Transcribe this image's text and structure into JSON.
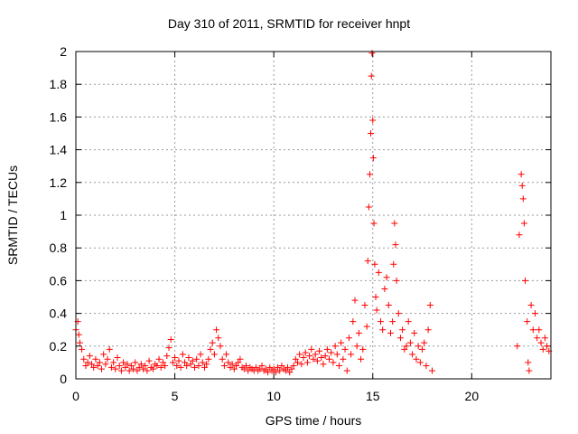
{
  "chart_data": {
    "type": "scatter",
    "title": "Day 310 of 2011, SRMTID for receiver hnpt",
    "xlabel": "GPS time / hours",
    "ylabel": "SRMTID / TECUs",
    "xlim": [
      0,
      24
    ],
    "ylim": [
      0,
      2
    ],
    "xticks": [
      0,
      5,
      10,
      15,
      20
    ],
    "yticks": [
      0,
      0.2,
      0.4,
      0.6,
      0.8,
      1,
      1.2,
      1.4,
      1.6,
      1.8,
      2
    ],
    "grid": true,
    "marker": "+",
    "series_color": "#ff0000",
    "series": [
      {
        "points": [
          [
            0.0,
            0.3
          ],
          [
            0.1,
            0.35
          ],
          [
            0.15,
            0.27
          ],
          [
            0.2,
            0.22
          ],
          [
            0.3,
            0.18
          ],
          [
            0.4,
            0.12
          ],
          [
            0.5,
            0.08
          ],
          [
            0.6,
            0.1
          ],
          [
            0.7,
            0.14
          ],
          [
            0.8,
            0.09
          ],
          [
            0.9,
            0.07
          ],
          [
            1.0,
            0.12
          ],
          [
            1.1,
            0.08
          ],
          [
            1.2,
            0.1
          ],
          [
            1.3,
            0.06
          ],
          [
            1.4,
            0.15
          ],
          [
            1.5,
            0.09
          ],
          [
            1.6,
            0.12
          ],
          [
            1.7,
            0.18
          ],
          [
            1.8,
            0.07
          ],
          [
            1.9,
            0.1
          ],
          [
            2.0,
            0.06
          ],
          [
            2.1,
            0.13
          ],
          [
            2.2,
            0.08
          ],
          [
            2.3,
            0.05
          ],
          [
            2.4,
            0.1
          ],
          [
            2.5,
            0.07
          ],
          [
            2.6,
            0.09
          ],
          [
            2.7,
            0.05
          ],
          [
            2.8,
            0.08
          ],
          [
            2.9,
            0.06
          ],
          [
            3.0,
            0.1
          ],
          [
            3.1,
            0.05
          ],
          [
            3.2,
            0.07
          ],
          [
            3.3,
            0.09
          ],
          [
            3.4,
            0.06
          ],
          [
            3.5,
            0.08
          ],
          [
            3.6,
            0.05
          ],
          [
            3.7,
            0.11
          ],
          [
            3.8,
            0.07
          ],
          [
            3.9,
            0.06
          ],
          [
            4.0,
            0.09
          ],
          [
            4.1,
            0.08
          ],
          [
            4.2,
            0.12
          ],
          [
            4.3,
            0.07
          ],
          [
            4.4,
            0.1
          ],
          [
            4.5,
            0.08
          ],
          [
            4.6,
            0.14
          ],
          [
            4.7,
            0.19
          ],
          [
            4.8,
            0.24
          ],
          [
            4.9,
            0.1
          ],
          [
            5.0,
            0.13
          ],
          [
            5.1,
            0.08
          ],
          [
            5.2,
            0.11
          ],
          [
            5.3,
            0.07
          ],
          [
            5.4,
            0.15
          ],
          [
            5.5,
            0.1
          ],
          [
            5.6,
            0.08
          ],
          [
            5.7,
            0.13
          ],
          [
            5.8,
            0.09
          ],
          [
            5.9,
            0.11
          ],
          [
            6.0,
            0.07
          ],
          [
            6.1,
            0.12
          ],
          [
            6.2,
            0.08
          ],
          [
            6.3,
            0.15
          ],
          [
            6.4,
            0.1
          ],
          [
            6.5,
            0.07
          ],
          [
            6.6,
            0.09
          ],
          [
            6.7,
            0.12
          ],
          [
            6.8,
            0.18
          ],
          [
            6.9,
            0.22
          ],
          [
            7.0,
            0.15
          ],
          [
            7.1,
            0.3
          ],
          [
            7.2,
            0.25
          ],
          [
            7.3,
            0.2
          ],
          [
            7.4,
            0.12
          ],
          [
            7.5,
            0.08
          ],
          [
            7.6,
            0.15
          ],
          [
            7.7,
            0.1
          ],
          [
            7.8,
            0.07
          ],
          [
            7.9,
            0.09
          ],
          [
            8.0,
            0.06
          ],
          [
            8.1,
            0.08
          ],
          [
            8.2,
            0.1
          ],
          [
            8.3,
            0.12
          ],
          [
            8.4,
            0.07
          ],
          [
            8.5,
            0.06
          ],
          [
            8.6,
            0.08
          ],
          [
            8.7,
            0.05
          ],
          [
            8.8,
            0.07
          ],
          [
            8.9,
            0.06
          ],
          [
            9.0,
            0.05
          ],
          [
            9.1,
            0.07
          ],
          [
            9.2,
            0.05
          ],
          [
            9.3,
            0.06
          ],
          [
            9.4,
            0.08
          ],
          [
            9.5,
            0.05
          ],
          [
            9.6,
            0.06
          ],
          [
            9.7,
            0.04
          ],
          [
            9.8,
            0.07
          ],
          [
            9.9,
            0.05
          ],
          [
            10.0,
            0.06
          ],
          [
            10.1,
            0.04
          ],
          [
            10.2,
            0.07
          ],
          [
            10.3,
            0.05
          ],
          [
            10.4,
            0.08
          ],
          [
            10.5,
            0.06
          ],
          [
            10.6,
            0.05
          ],
          [
            10.7,
            0.07
          ],
          [
            10.8,
            0.04
          ],
          [
            10.9,
            0.06
          ],
          [
            11.0,
            0.08
          ],
          [
            11.1,
            0.12
          ],
          [
            11.2,
            0.1
          ],
          [
            11.3,
            0.15
          ],
          [
            11.4,
            0.09
          ],
          [
            11.5,
            0.13
          ],
          [
            11.6,
            0.16
          ],
          [
            11.7,
            0.1
          ],
          [
            11.8,
            0.14
          ],
          [
            11.9,
            0.18
          ],
          [
            12.0,
            0.12
          ],
          [
            12.1,
            0.15
          ],
          [
            12.2,
            0.11
          ],
          [
            12.3,
            0.17
          ],
          [
            12.4,
            0.13
          ],
          [
            12.5,
            0.09
          ],
          [
            12.6,
            0.14
          ],
          [
            12.7,
            0.18
          ],
          [
            12.8,
            0.12
          ],
          [
            12.9,
            0.16
          ],
          [
            13.0,
            0.1
          ],
          [
            13.1,
            0.2
          ],
          [
            13.2,
            0.15
          ],
          [
            13.3,
            0.08
          ],
          [
            13.4,
            0.22
          ],
          [
            13.5,
            0.12
          ],
          [
            13.6,
            0.18
          ],
          [
            13.7,
            0.05
          ],
          [
            13.8,
            0.25
          ],
          [
            13.9,
            0.15
          ],
          [
            14.0,
            0.35
          ],
          [
            14.1,
            0.48
          ],
          [
            14.2,
            0.2
          ],
          [
            14.3,
            0.28
          ],
          [
            14.4,
            0.12
          ],
          [
            14.5,
            0.18
          ],
          [
            14.6,
            0.45
          ],
          [
            14.7,
            0.32
          ],
          [
            14.75,
            0.72
          ],
          [
            14.8,
            1.05
          ],
          [
            14.85,
            1.25
          ],
          [
            14.9,
            1.5
          ],
          [
            14.93,
            1.85
          ],
          [
            14.96,
            1.99
          ],
          [
            15.0,
            1.58
          ],
          [
            15.03,
            1.35
          ],
          [
            15.06,
            0.95
          ],
          [
            15.1,
            0.7
          ],
          [
            15.15,
            0.5
          ],
          [
            15.2,
            0.42
          ],
          [
            15.3,
            0.65
          ],
          [
            15.4,
            0.35
          ],
          [
            15.5,
            0.3
          ],
          [
            15.6,
            0.55
          ],
          [
            15.7,
            0.62
          ],
          [
            15.8,
            0.45
          ],
          [
            15.9,
            0.28
          ],
          [
            16.0,
            0.35
          ],
          [
            16.05,
            0.7
          ],
          [
            16.1,
            0.95
          ],
          [
            16.15,
            0.82
          ],
          [
            16.2,
            0.6
          ],
          [
            16.3,
            0.4
          ],
          [
            16.4,
            0.25
          ],
          [
            16.5,
            0.3
          ],
          [
            16.6,
            0.18
          ],
          [
            16.7,
            0.2
          ],
          [
            16.8,
            0.35
          ],
          [
            16.9,
            0.22
          ],
          [
            17.0,
            0.15
          ],
          [
            17.1,
            0.28
          ],
          [
            17.2,
            0.12
          ],
          [
            17.3,
            0.2
          ],
          [
            17.4,
            0.1
          ],
          [
            17.5,
            0.18
          ],
          [
            17.6,
            0.22
          ],
          [
            17.7,
            0.08
          ],
          [
            17.8,
            0.3
          ],
          [
            17.9,
            0.45
          ],
          [
            18.0,
            0.05
          ],
          [
            22.3,
            0.2
          ],
          [
            22.4,
            0.88
          ],
          [
            22.5,
            1.25
          ],
          [
            22.55,
            1.18
          ],
          [
            22.6,
            1.1
          ],
          [
            22.65,
            0.95
          ],
          [
            22.7,
            0.6
          ],
          [
            22.8,
            0.35
          ],
          [
            22.85,
            0.1
          ],
          [
            22.9,
            0.05
          ],
          [
            23.0,
            0.45
          ],
          [
            23.1,
            0.3
          ],
          [
            23.2,
            0.4
          ],
          [
            23.3,
            0.25
          ],
          [
            23.4,
            0.3
          ],
          [
            23.5,
            0.22
          ],
          [
            23.6,
            0.18
          ],
          [
            23.7,
            0.25
          ],
          [
            23.8,
            0.2
          ],
          [
            23.9,
            0.17
          ]
        ]
      }
    ]
  }
}
